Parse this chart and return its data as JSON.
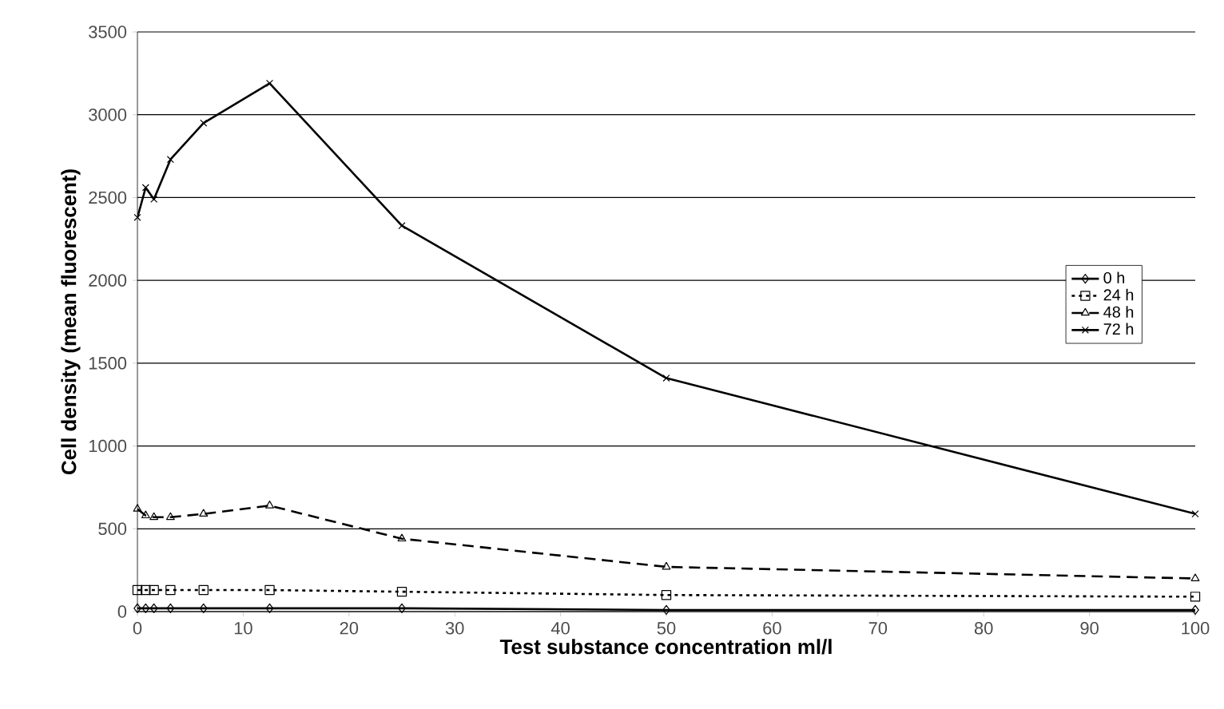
{
  "chart_data": {
    "type": "line",
    "xlabel": "Test substance concentration ml/l",
    "ylabel": "Cell density (mean fluorescent)",
    "xlim": [
      0,
      100
    ],
    "xticks": [
      0,
      10,
      20,
      30,
      40,
      50,
      60,
      70,
      80,
      90,
      100
    ],
    "ylim": [
      0,
      3500
    ],
    "yticks": [
      0,
      500,
      1000,
      1500,
      2000,
      2500,
      3000,
      3500
    ],
    "grid": "y",
    "legend": "right",
    "x": [
      0,
      0.78,
      1.56,
      3.125,
      6.25,
      12.5,
      25,
      50,
      100
    ],
    "series": [
      {
        "name": "0 h",
        "color": "#000000",
        "marker": "diamond",
        "line_style": "solid",
        "values": [
          20,
          20,
          20,
          20,
          20,
          20,
          20,
          10,
          10
        ]
      },
      {
        "name": "24 h",
        "color": "#000000",
        "marker": "square",
        "line_style": "dotted",
        "values": [
          130,
          130,
          130,
          130,
          130,
          130,
          120,
          100,
          90
        ]
      },
      {
        "name": "48 h",
        "color": "#000000",
        "marker": "triangle",
        "line_style": "dashed",
        "values": [
          620,
          580,
          570,
          570,
          590,
          640,
          440,
          270,
          200
        ]
      },
      {
        "name": "72 h",
        "color": "#000000",
        "marker": "cross",
        "line_style": "solid",
        "values": [
          2380,
          2560,
          2490,
          2730,
          2950,
          3190,
          2330,
          1410,
          590
        ]
      }
    ]
  }
}
